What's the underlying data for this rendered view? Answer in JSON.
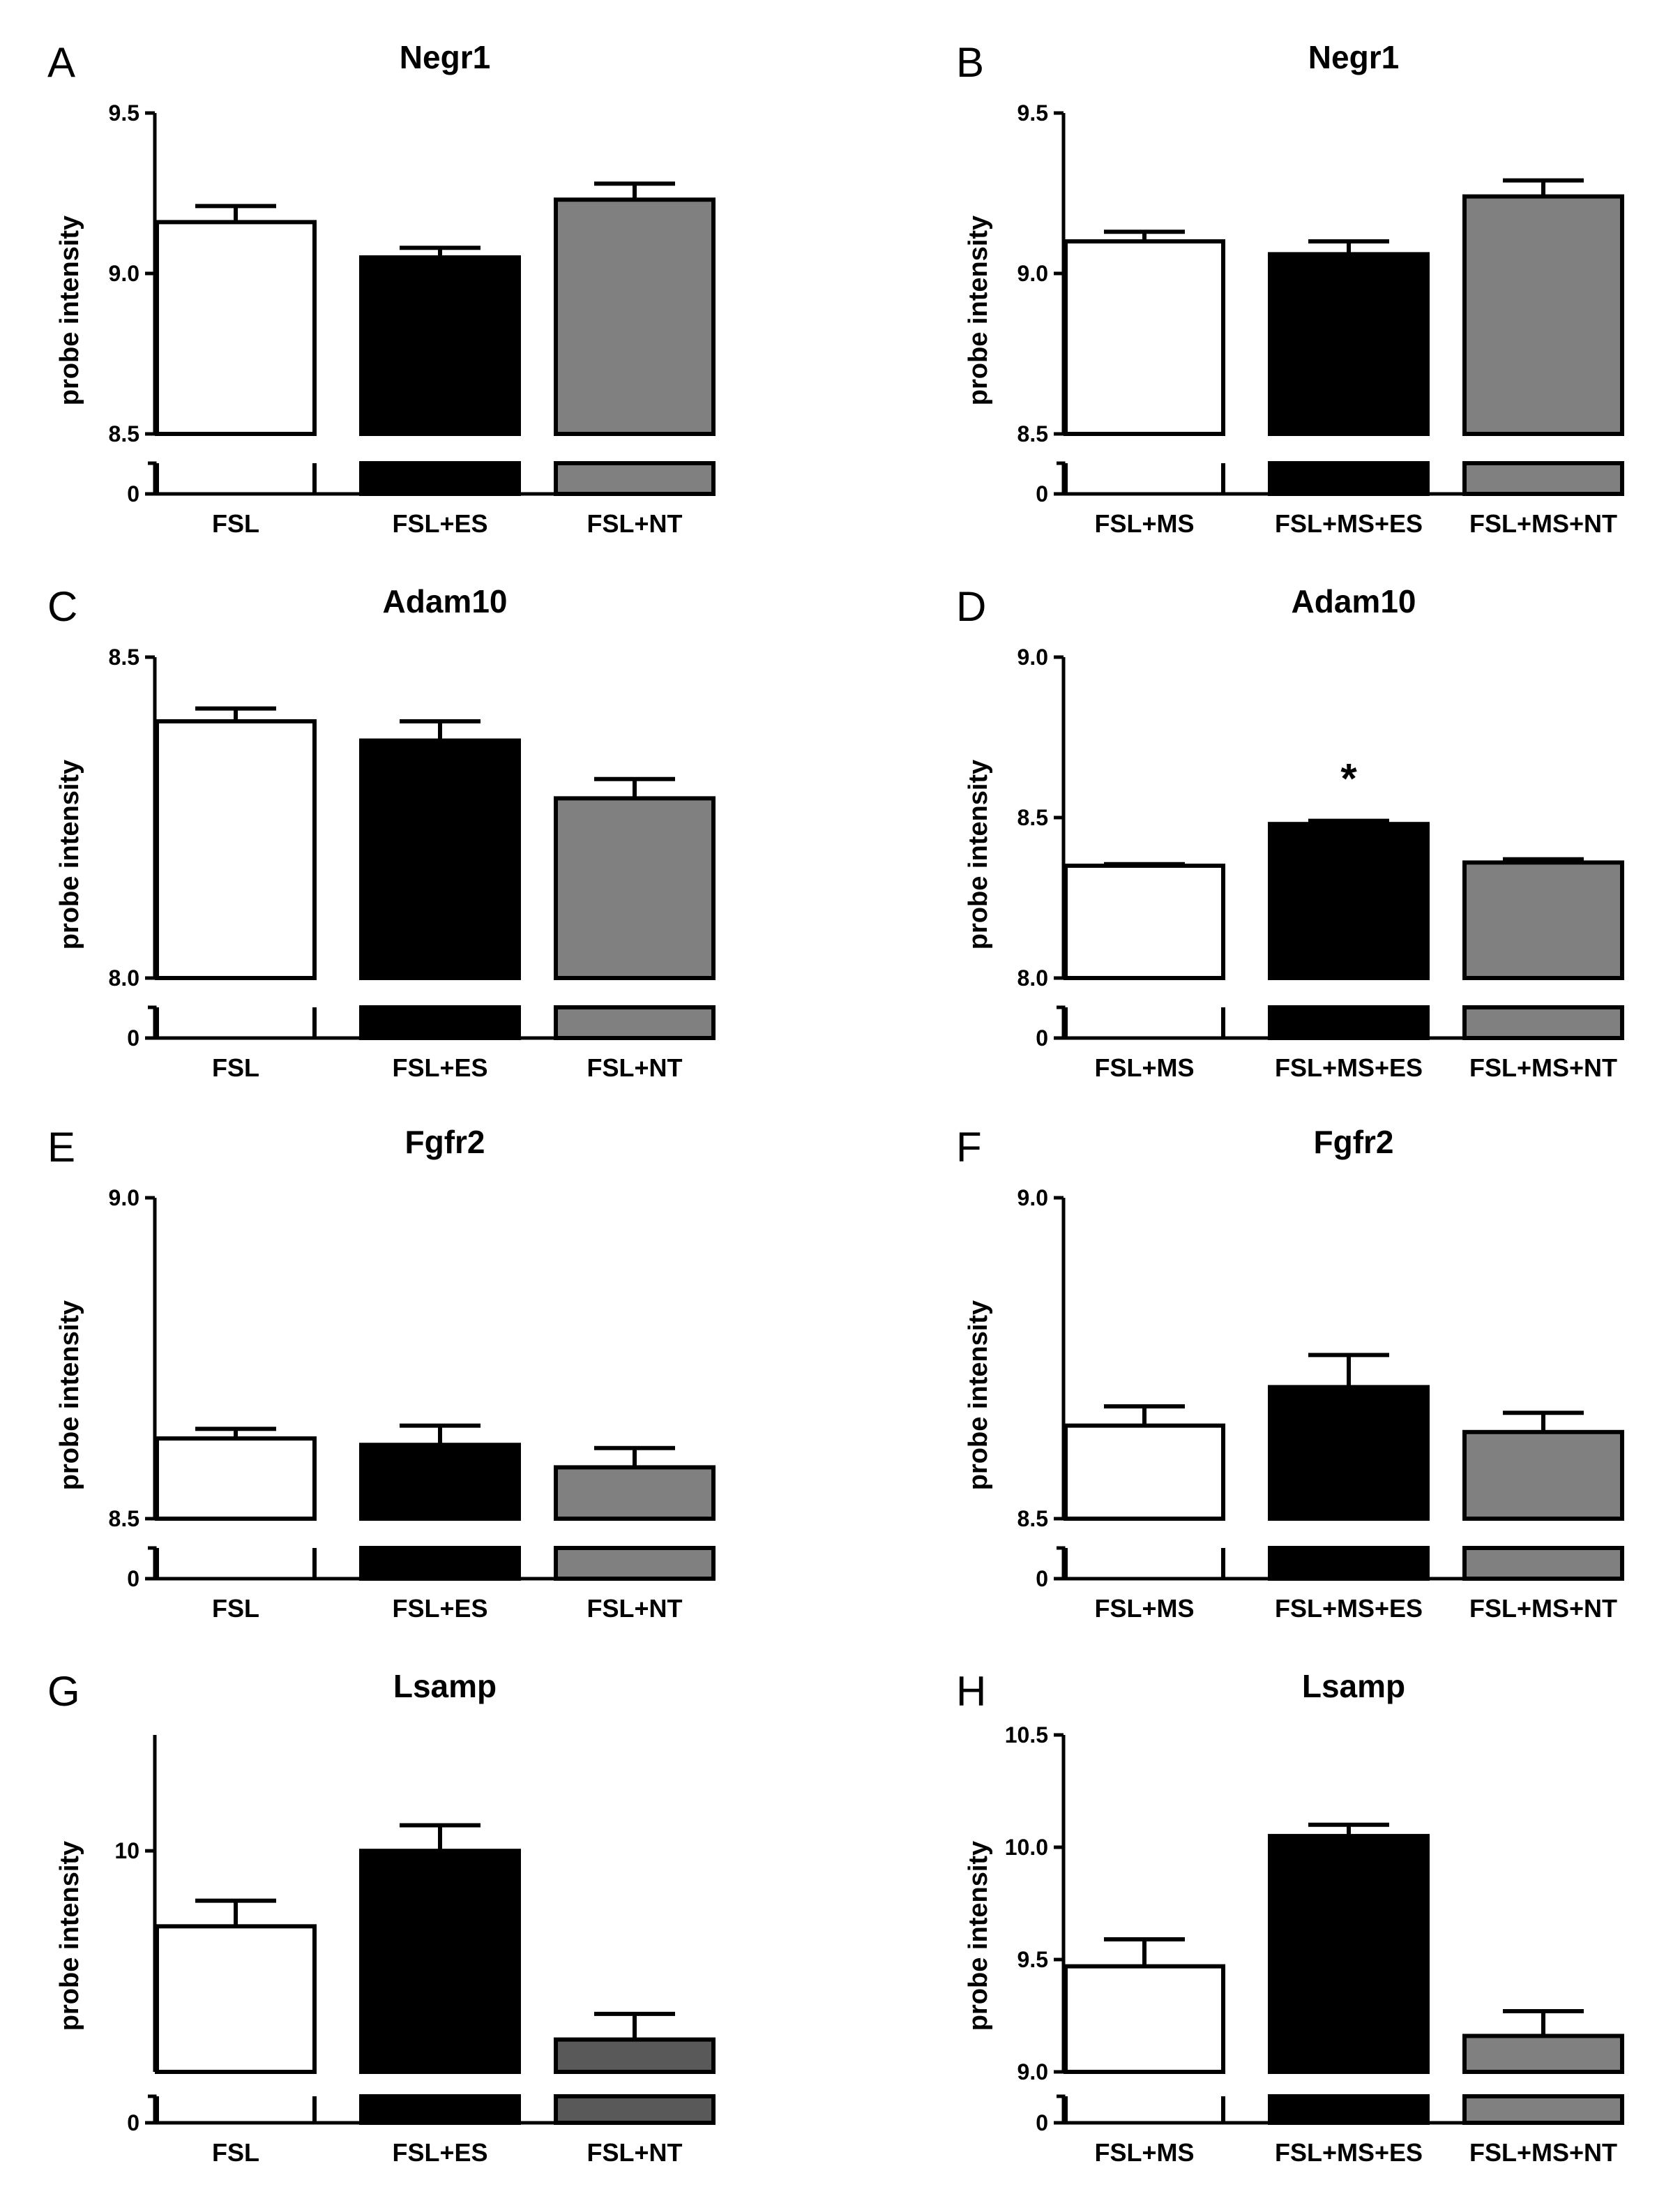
{
  "chart_data": [
    {
      "panel": "A",
      "type": "bar",
      "title": "Negr1",
      "ylabel": "probe intensity",
      "xlabel": "",
      "ylim": [
        8.5,
        9.5
      ],
      "yticks": [
        "8.5",
        "9.0",
        "9.5"
      ],
      "zero_tick": "0",
      "categories": [
        "FSL",
        "FSL+ES",
        "FSL+NT"
      ],
      "values": [
        9.16,
        9.05,
        9.23
      ],
      "errors": [
        0.05,
        0.03,
        0.05
      ],
      "colors": [
        "#ffffff",
        "#000000",
        "#808080"
      ],
      "annotations": [
        "",
        "",
        ""
      ]
    },
    {
      "panel": "B",
      "type": "bar",
      "title": "Negr1",
      "ylabel": "probe intensity",
      "xlabel": "",
      "ylim": [
        8.5,
        9.5
      ],
      "yticks": [
        "8.5",
        "9.0",
        "9.5"
      ],
      "zero_tick": "0",
      "categories": [
        "FSL+MS",
        "FSL+MS+ES",
        "FSL+MS+NT"
      ],
      "values": [
        9.1,
        9.06,
        9.24
      ],
      "errors": [
        0.03,
        0.04,
        0.05
      ],
      "colors": [
        "#ffffff",
        "#000000",
        "#808080"
      ],
      "annotations": [
        "",
        "",
        ""
      ]
    },
    {
      "panel": "C",
      "type": "bar",
      "title": "Adam10",
      "ylabel": "probe intensity",
      "xlabel": "",
      "ylim": [
        8.0,
        8.5
      ],
      "yticks": [
        "8.0",
        "8.5"
      ],
      "zero_tick": "0",
      "categories": [
        "FSL",
        "FSL+ES",
        "FSL+NT"
      ],
      "values": [
        8.4,
        8.37,
        8.28
      ],
      "errors": [
        0.02,
        0.03,
        0.03
      ],
      "colors": [
        "#ffffff",
        "#000000",
        "#808080"
      ],
      "annotations": [
        "",
        "",
        ""
      ]
    },
    {
      "panel": "D",
      "type": "bar",
      "title": "Adam10",
      "ylabel": "probe intensity",
      "xlabel": "",
      "ylim": [
        8.0,
        9.0
      ],
      "yticks": [
        "8.0",
        "8.5",
        "9.0"
      ],
      "zero_tick": "0",
      "categories": [
        "FSL+MS",
        "FSL+MS+ES",
        "FSL+MS+NT"
      ],
      "values": [
        8.35,
        8.48,
        8.36
      ],
      "errors": [
        0.005,
        0.01,
        0.01
      ],
      "colors": [
        "#ffffff",
        "#000000",
        "#808080"
      ],
      "annotations": [
        "",
        "*",
        ""
      ]
    },
    {
      "panel": "E",
      "type": "bar",
      "title": "Fgfr2",
      "ylabel": "probe intensity",
      "xlabel": "",
      "ylim": [
        8.5,
        9.0
      ],
      "yticks": [
        "8.5",
        "9.0"
      ],
      "zero_tick": "0",
      "categories": [
        "FSL",
        "FSL+ES",
        "FSL+NT"
      ],
      "values": [
        8.625,
        8.615,
        8.58
      ],
      "errors": [
        0.015,
        0.03,
        0.03
      ],
      "colors": [
        "#ffffff",
        "#000000",
        "#808080"
      ],
      "annotations": [
        "",
        "",
        ""
      ]
    },
    {
      "panel": "F",
      "type": "bar",
      "title": "Fgfr2",
      "ylabel": "probe intensity",
      "xlabel": "",
      "ylim": [
        8.5,
        9.0
      ],
      "yticks": [
        "8.5",
        "9.0"
      ],
      "zero_tick": "0",
      "categories": [
        "FSL+MS",
        "FSL+MS+ES",
        "FSL+MS+NT"
      ],
      "values": [
        8.645,
        8.705,
        8.635
      ],
      "errors": [
        0.03,
        0.05,
        0.03
      ],
      "colors": [
        "#ffffff",
        "#000000",
        "#808080"
      ],
      "annotations": [
        "",
        "",
        ""
      ]
    },
    {
      "panel": "G",
      "type": "bar",
      "title": "Lsamp",
      "ylabel": "probe intensity",
      "xlabel": "",
      "ylim": [
        1.8,
        14.3
      ],
      "yticks": [
        "10"
      ],
      "yticks_at": [
        10
      ],
      "zero_tick": "0",
      "categories": [
        "FSL",
        "FSL+ES",
        "FSL+NT"
      ],
      "values": [
        7.2,
        10.0,
        3.0
      ],
      "errors": [
        0.95,
        0.95,
        0.95
      ],
      "colors": [
        "#ffffff",
        "#000000",
        "#595959"
      ],
      "annotations": [
        "",
        "",
        ""
      ]
    },
    {
      "panel": "H",
      "type": "bar",
      "title": "Lsamp",
      "ylabel": "probe intensity",
      "xlabel": "",
      "ylim": [
        9.0,
        10.5
      ],
      "yticks": [
        "9.0",
        "9.5",
        "10.0",
        "10.5"
      ],
      "zero_tick": "0",
      "categories": [
        "FSL+MS",
        "FSL+MS+ES",
        "FSL+MS+NT"
      ],
      "values": [
        9.47,
        10.05,
        9.16
      ],
      "errors": [
        0.12,
        0.05,
        0.11
      ],
      "colors": [
        "#ffffff",
        "#000000",
        "#808080"
      ],
      "annotations": [
        "",
        "",
        ""
      ]
    }
  ]
}
